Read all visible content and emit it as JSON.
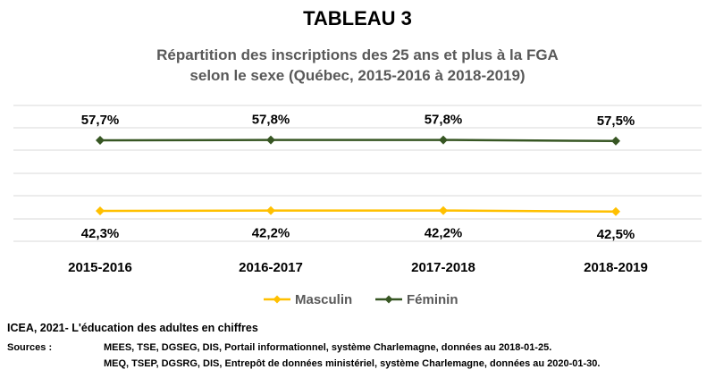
{
  "header": {
    "title": "TABLEAU 3",
    "subtitle_line1": "Répartition des inscriptions des 25 ans et plus à la FGA",
    "subtitle_line2": "selon le sexe (Québec, 2015-2016 à 2018-2019)"
  },
  "chart_data": {
    "type": "line",
    "categories": [
      "2015-2016",
      "2016-2017",
      "2017-2018",
      "2018-2019"
    ],
    "series": [
      {
        "name": "Masculin",
        "values": [
          42.3,
          42.2,
          42.2,
          42.5
        ],
        "labels": [
          "42,3%",
          "42,2%",
          "42,2%",
          "42,5%"
        ],
        "color": "#FFC000"
      },
      {
        "name": "Féminin",
        "values": [
          57.7,
          57.8,
          57.8,
          57.5
        ],
        "labels": [
          "57,7%",
          "57,8%",
          "57,8%",
          "57,5%"
        ],
        "color": "#375623"
      }
    ],
    "grid": true,
    "legend_position": "bottom",
    "marker": "diamond"
  },
  "footer": {
    "caption": "ICEA, 2021- L'éducation des adultes en chiffres",
    "sources_label": "Sources :",
    "sources": [
      "MEES, TSE, DGSEG, DIS, Portail informationnel, système Charlemagne, données au 2018-01-25.",
      "MEQ, TSEP, DGSRG, DIS, Entrepôt de données ministériel, système Charlemagne, données au 2020-01-30."
    ]
  }
}
